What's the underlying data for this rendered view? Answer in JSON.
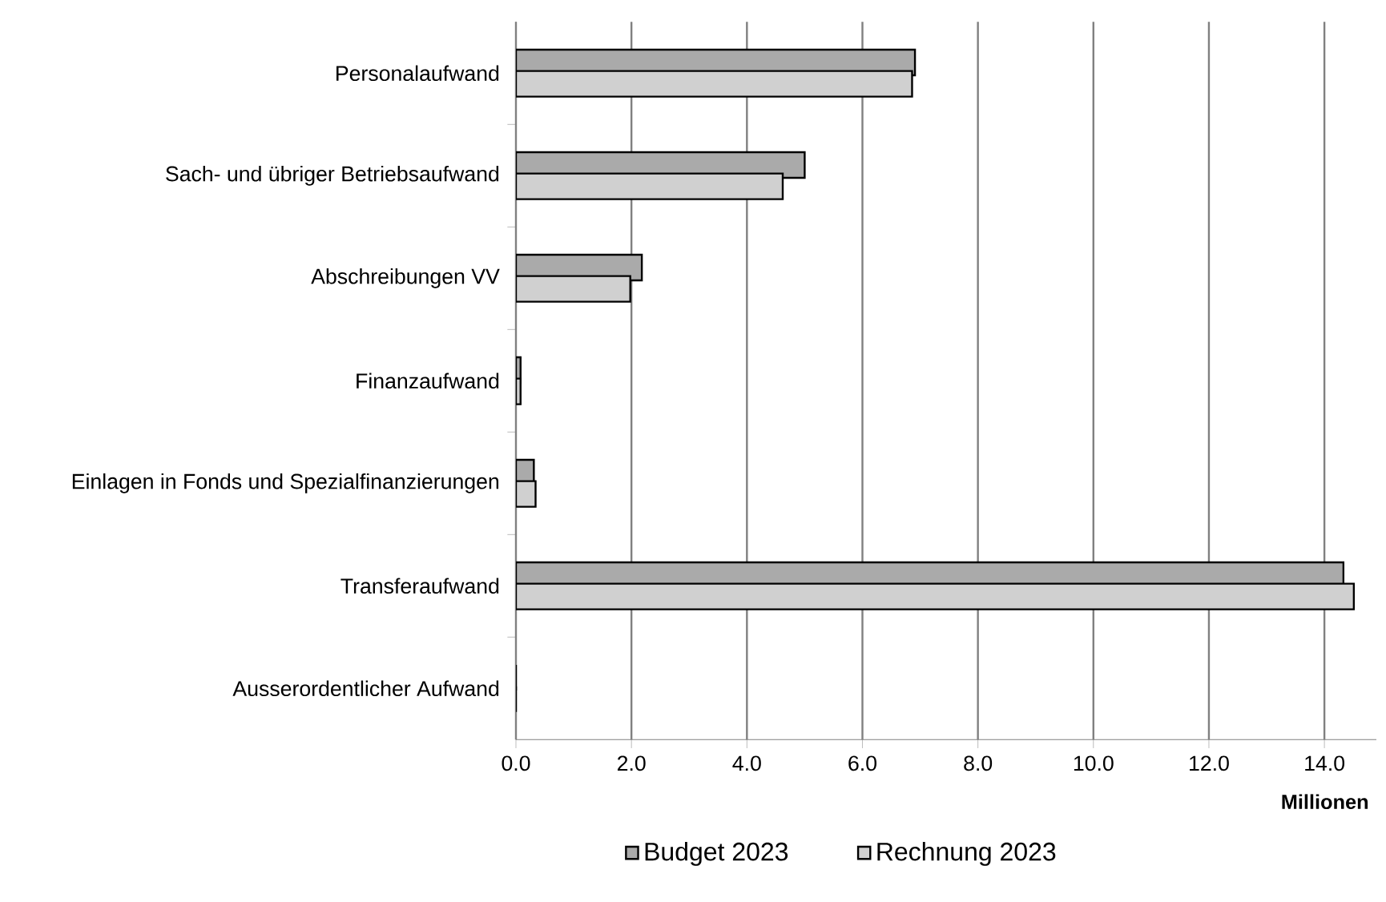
{
  "chart_data": {
    "type": "bar",
    "orientation": "horizontal",
    "categories": [
      "Personalaufwand",
      "Sach- und übriger Betriebsaufwand",
      "Abschreibungen VV",
      "Finanzaufwand",
      "Einlagen in Fonds und Spezialfinanzierungen",
      "Transferaufwand",
      "Ausserordentlicher Aufwand"
    ],
    "series": [
      {
        "name": "Budget 2023",
        "color": "#aaaaaa",
        "values": [
          6.91,
          5.0,
          2.18,
          0.08,
          0.31,
          14.33,
          0
        ]
      },
      {
        "name": "Rechnung 2023",
        "color": "#d0d0d0",
        "values": [
          6.86,
          4.62,
          1.98,
          0.08,
          0.34,
          14.51,
          0
        ]
      }
    ],
    "xlim": [
      0,
      14.9
    ],
    "xticks": [
      {
        "value": 0,
        "label": "0.0"
      },
      {
        "value": 2,
        "label": "2.0"
      },
      {
        "value": 4,
        "label": "4.0"
      },
      {
        "value": 6,
        "label": "6.0"
      },
      {
        "value": 8,
        "label": "8.0"
      },
      {
        "value": 10,
        "label": "10.0"
      },
      {
        "value": 12,
        "label": "12.0"
      },
      {
        "value": 14,
        "label": "14.0"
      }
    ],
    "xlabel": "Millionen",
    "grid": "x",
    "legend": "bottom"
  }
}
